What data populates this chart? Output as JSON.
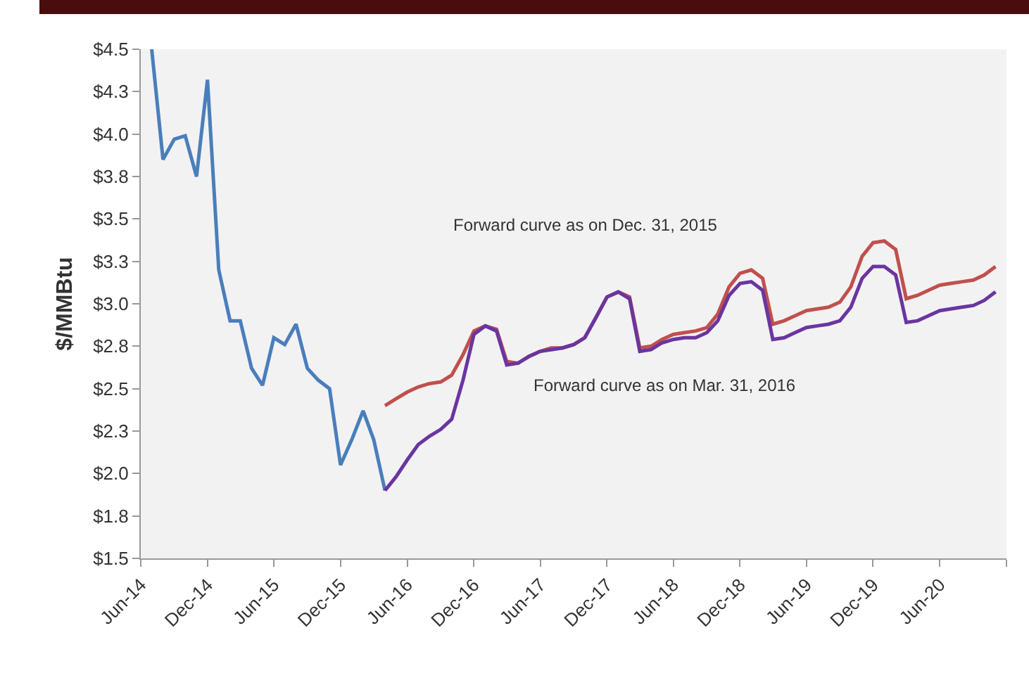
{
  "chart_data": {
    "type": "line",
    "ylabel": "$/MMBtu",
    "xlim": [
      "2014-06",
      "2020-12"
    ],
    "xticks": [
      {
        "value": "2014-06",
        "label": "Jun-14"
      },
      {
        "value": "2014-12",
        "label": "Dec-14"
      },
      {
        "value": "2015-06",
        "label": "Jun-15"
      },
      {
        "value": "2015-12",
        "label": "Dec-15"
      },
      {
        "value": "2016-06",
        "label": "Jun-16"
      },
      {
        "value": "2016-12",
        "label": "Dec-16"
      },
      {
        "value": "2017-06",
        "label": "Jun-17"
      },
      {
        "value": "2017-12",
        "label": "Dec-17"
      },
      {
        "value": "2018-06",
        "label": "Jun-18"
      },
      {
        "value": "2018-12",
        "label": "Dec-18"
      },
      {
        "value": "2019-06",
        "label": "Jun-19"
      },
      {
        "value": "2019-12",
        "label": "Dec-19"
      },
      {
        "value": "2020-06",
        "label": "Jun-20"
      },
      {
        "value": "2020-12",
        "label": null
      }
    ],
    "ylim": [
      1.5,
      4.5
    ],
    "yticks": [
      {
        "value": 1.5,
        "label": "$1.5"
      },
      {
        "value": 1.75,
        "label": "$1.8"
      },
      {
        "value": 2,
        "label": "$2.0"
      },
      {
        "value": 2.25,
        "label": "$2.3"
      },
      {
        "value": 2.5,
        "label": "$2.5"
      },
      {
        "value": 2.75,
        "label": "$2.8"
      },
      {
        "value": 3,
        "label": "$3.0"
      },
      {
        "value": 3.25,
        "label": "$3.3"
      },
      {
        "value": 3.5,
        "label": "$3.5"
      },
      {
        "value": 3.75,
        "label": "$3.8"
      },
      {
        "value": 4,
        "label": "$4.0"
      },
      {
        "value": 4.25,
        "label": "$4.3"
      },
      {
        "value": 4.5,
        "label": "$4.5"
      }
    ],
    "grid": false,
    "marker": "none",
    "line_style": "solid",
    "series": [
      {
        "color": "#4a7ebb",
        "x": [
          "2014-07",
          "2014-08",
          "2014-09",
          "2014-10",
          "2014-11",
          "2014-12",
          "2015-01",
          "2015-02",
          "2015-03",
          "2015-04",
          "2015-05",
          "2015-06",
          "2015-07",
          "2015-08",
          "2015-09",
          "2015-10",
          "2015-11",
          "2015-12",
          "2016-01",
          "2016-02",
          "2016-03",
          "2016-04"
        ],
        "values": [
          4.5,
          3.85,
          3.97,
          3.99,
          3.75,
          4.32,
          3.2,
          2.9,
          2.9,
          2.62,
          2.52,
          2.8,
          2.76,
          2.88,
          2.62,
          2.55,
          2.5,
          2.05,
          2.2,
          2.37,
          2.2,
          1.9
        ]
      },
      {
        "color": "#c0504d",
        "x": [
          "2016-04",
          "2016-05",
          "2016-06",
          "2016-07",
          "2016-08",
          "2016-09",
          "2016-10",
          "2016-11",
          "2016-12",
          "2017-01",
          "2017-02",
          "2017-03",
          "2017-04",
          "2017-05",
          "2017-06",
          "2017-07",
          "2017-08",
          "2017-09",
          "2017-10",
          "2017-11",
          "2017-12",
          "2018-01",
          "2018-02",
          "2018-03",
          "2018-04",
          "2018-05",
          "2018-06",
          "2018-07",
          "2018-08",
          "2018-09",
          "2018-10",
          "2018-11",
          "2018-12",
          "2019-01",
          "2019-02",
          "2019-03",
          "2019-04",
          "2019-05",
          "2019-06",
          "2019-07",
          "2019-08",
          "2019-09",
          "2019-10",
          "2019-11",
          "2019-12",
          "2020-01",
          "2020-02",
          "2020-03",
          "2020-04",
          "2020-05",
          "2020-06",
          "2020-07",
          "2020-08",
          "2020-09",
          "2020-10",
          "2020-11"
        ],
        "values": [
          2.4,
          2.44,
          2.48,
          2.51,
          2.53,
          2.54,
          2.58,
          2.7,
          2.84,
          2.87,
          2.85,
          2.66,
          2.65,
          2.69,
          2.72,
          2.74,
          2.74,
          2.76,
          2.8,
          2.92,
          3.04,
          3.07,
          3.04,
          2.74,
          2.75,
          2.79,
          2.82,
          2.83,
          2.84,
          2.86,
          2.94,
          3.1,
          3.18,
          3.2,
          3.15,
          2.88,
          2.9,
          2.93,
          2.96,
          2.97,
          2.98,
          3.01,
          3.1,
          3.28,
          3.36,
          3.37,
          3.32,
          3.03,
          3.05,
          3.08,
          3.11,
          3.12,
          3.13,
          3.14,
          3.17,
          3.22
        ]
      },
      {
        "color": "#6a35a0",
        "x": [
          "2016-04",
          "2016-05",
          "2016-06",
          "2016-07",
          "2016-08",
          "2016-09",
          "2016-10",
          "2016-11",
          "2016-12",
          "2017-01",
          "2017-02",
          "2017-03",
          "2017-04",
          "2017-05",
          "2017-06",
          "2017-07",
          "2017-08",
          "2017-09",
          "2017-10",
          "2017-11",
          "2017-12",
          "2018-01",
          "2018-02",
          "2018-03",
          "2018-04",
          "2018-05",
          "2018-06",
          "2018-07",
          "2018-08",
          "2018-09",
          "2018-10",
          "2018-11",
          "2018-12",
          "2019-01",
          "2019-02",
          "2019-03",
          "2019-04",
          "2019-05",
          "2019-06",
          "2019-07",
          "2019-08",
          "2019-09",
          "2019-10",
          "2019-11",
          "2019-12",
          "2020-01",
          "2020-02",
          "2020-03",
          "2020-04",
          "2020-05",
          "2020-06",
          "2020-07",
          "2020-08",
          "2020-09",
          "2020-10",
          "2020-11"
        ],
        "values": [
          1.9,
          1.98,
          2.08,
          2.17,
          2.22,
          2.26,
          2.32,
          2.55,
          2.82,
          2.87,
          2.84,
          2.64,
          2.65,
          2.69,
          2.72,
          2.73,
          2.74,
          2.76,
          2.8,
          2.92,
          3.04,
          3.07,
          3.03,
          2.72,
          2.73,
          2.77,
          2.79,
          2.8,
          2.8,
          2.83,
          2.9,
          3.05,
          3.12,
          3.13,
          3.08,
          2.79,
          2.8,
          2.83,
          2.86,
          2.87,
          2.88,
          2.9,
          2.98,
          3.15,
          3.22,
          3.22,
          3.17,
          2.89,
          2.9,
          2.93,
          2.96,
          2.97,
          2.98,
          2.99,
          3.02,
          3.07
        ]
      }
    ],
    "annotations": [
      "Forward curve as on Dec. 31, 2015",
      "Forward curve as on Mar. 31, 2016"
    ]
  }
}
